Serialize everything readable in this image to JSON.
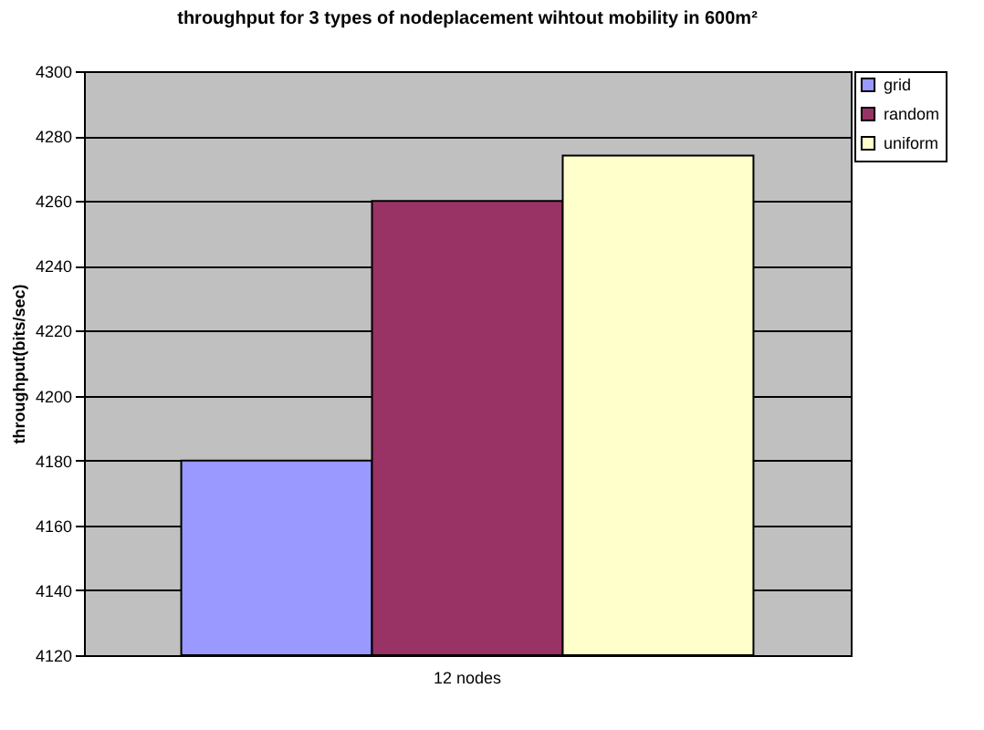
{
  "chart_data": {
    "type": "bar",
    "title": "throughput for 3 types of nodeplacement wihtout mobility in 600m²",
    "ylabel": "throughput(bits/sec)",
    "categories": [
      "12 nodes"
    ],
    "series": [
      {
        "name": "grid",
        "color": "#9999ff",
        "values": [
          4180
        ]
      },
      {
        "name": "random",
        "color": "#993366",
        "values": [
          4260
        ]
      },
      {
        "name": "uniform",
        "color": "#ffffcc",
        "values": [
          4274
        ]
      }
    ],
    "ylim": [
      4120,
      4300
    ],
    "yticks": [
      4120,
      4140,
      4160,
      4180,
      4200,
      4220,
      4240,
      4260,
      4280,
      4300
    ],
    "grid": "y",
    "legend": "right"
  }
}
